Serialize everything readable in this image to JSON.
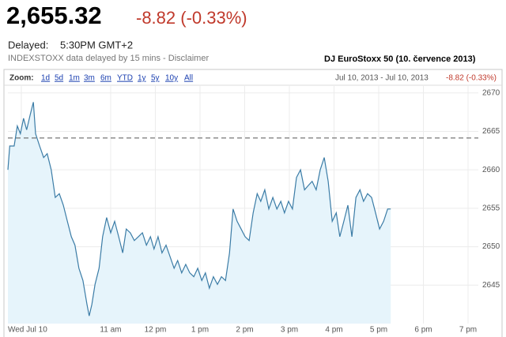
{
  "header": {
    "price": "2,655.32",
    "change": "-8.82 (-0.33%)",
    "delayed_label": "Delayed:",
    "delayed_time": "5:30PM GMT+2",
    "note": "INDEXSTOXX data delayed by 15 mins - Disclaimer"
  },
  "chart_data": {
    "type": "line",
    "title": "DJ EuroStoxx 50 (10. července 2013)",
    "zoom_label": "Zoom:",
    "zoom_options": [
      "1d",
      "5d",
      "1m",
      "3m",
      "6m",
      "YTD",
      "1y",
      "5y",
      "10y",
      "All"
    ],
    "range_text": "Jul 10, 2013 - Jul 10, 2013",
    "range_change": "-8.82 (-0.33%)",
    "xlim": [
      8.7,
      19.23
    ],
    "ylim": [
      2640,
      2671
    ],
    "xticks": [
      {
        "value": 9,
        "label": "Wed Jul 10"
      },
      {
        "value": 11,
        "label": "11 am"
      },
      {
        "value": 12,
        "label": "12 pm"
      },
      {
        "value": 13,
        "label": "1 pm"
      },
      {
        "value": 14,
        "label": "2 pm"
      },
      {
        "value": 15,
        "label": "3 pm"
      },
      {
        "value": 16,
        "label": "4 pm"
      },
      {
        "value": 17,
        "label": "5 pm"
      },
      {
        "value": 18,
        "label": "6 pm"
      },
      {
        "value": 19,
        "label": "7 pm"
      }
    ],
    "yticks": [
      2645,
      2650,
      2655,
      2660,
      2665,
      2670
    ],
    "grid": true,
    "previous_close": 2664.14,
    "previous_close_color": "#555555",
    "fill_color": "#e6f4fb",
    "x": [
      8.7,
      8.74,
      8.84,
      8.91,
      8.98,
      9.05,
      9.12,
      9.2,
      9.27,
      9.32,
      9.41,
      9.5,
      9.58,
      9.67,
      9.76,
      9.85,
      9.94,
      10.03,
      10.12,
      10.2,
      10.29,
      10.38,
      10.47,
      10.52,
      10.58,
      10.65,
      10.74,
      10.82,
      10.91,
      11.0,
      11.09,
      11.18,
      11.27,
      11.35,
      11.44,
      11.53,
      11.62,
      11.71,
      11.8,
      11.89,
      11.97,
      12.06,
      12.15,
      12.24,
      12.33,
      12.42,
      12.5,
      12.59,
      12.68,
      12.77,
      12.86,
      12.95,
      13.04,
      13.12,
      13.21,
      13.3,
      13.39,
      13.48,
      13.57,
      13.66,
      13.74,
      13.83,
      13.92,
      14.01,
      14.1,
      14.19,
      14.28,
      14.36,
      14.45,
      14.54,
      14.63,
      14.72,
      14.81,
      14.89,
      14.98,
      15.07,
      15.16,
      15.25,
      15.34,
      15.43,
      15.51,
      15.6,
      15.69,
      15.78,
      15.87,
      15.96,
      16.05,
      16.13,
      16.22,
      16.31,
      16.4,
      16.49,
      16.58,
      16.66,
      16.75,
      16.84,
      16.93,
      17.02,
      17.11,
      17.2,
      17.27
    ],
    "series": [
      {
        "name": "DJ EuroStoxx 50",
        "color": "#3b7ca6",
        "values": [
          2660.0,
          2663.1,
          2663.1,
          2665.7,
          2664.7,
          2666.7,
          2665.2,
          2667.2,
          2668.8,
          2664.7,
          2663.1,
          2661.6,
          2662.1,
          2660.0,
          2656.4,
          2656.9,
          2655.4,
          2653.3,
          2651.3,
          2650.2,
          2647.2,
          2645.6,
          2642.5,
          2641.0,
          2642.5,
          2645.1,
          2647.2,
          2651.3,
          2653.8,
          2651.8,
          2653.3,
          2651.3,
          2649.2,
          2652.3,
          2651.8,
          2650.8,
          2651.3,
          2651.8,
          2650.2,
          2651.3,
          2649.7,
          2651.3,
          2649.2,
          2650.2,
          2648.7,
          2647.2,
          2648.2,
          2646.6,
          2647.7,
          2646.6,
          2646.1,
          2647.2,
          2645.6,
          2646.6,
          2644.6,
          2646.1,
          2645.1,
          2646.1,
          2645.6,
          2649.2,
          2654.9,
          2653.3,
          2652.3,
          2651.3,
          2650.8,
          2654.4,
          2656.9,
          2655.9,
          2657.4,
          2654.9,
          2656.4,
          2654.9,
          2655.9,
          2654.4,
          2655.9,
          2654.9,
          2659.0,
          2660.0,
          2657.4,
          2658.0,
          2658.5,
          2657.4,
          2660.0,
          2661.6,
          2658.5,
          2653.3,
          2654.4,
          2651.3,
          2653.3,
          2655.4,
          2651.3,
          2656.4,
          2657.4,
          2655.9,
          2656.9,
          2656.4,
          2654.4,
          2652.3,
          2653.3,
          2654.9,
          2654.9
        ]
      }
    ]
  }
}
